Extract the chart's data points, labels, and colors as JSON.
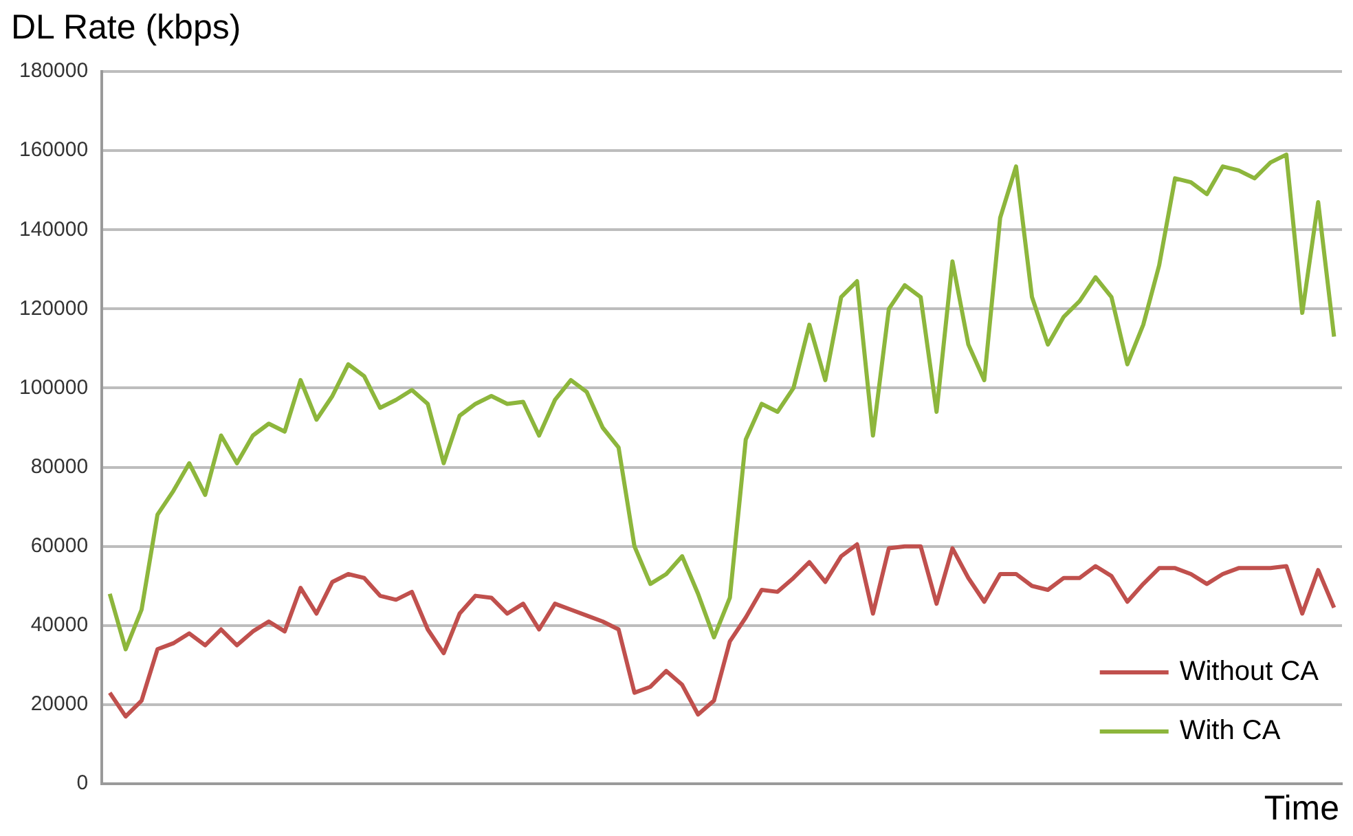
{
  "chart_data": {
    "type": "line",
    "ylabel": "DL Rate (kbps)",
    "xlabel": "Time",
    "categories": [
      null,
      null,
      null,
      null,
      null,
      null,
      null,
      null,
      null,
      null,
      null,
      null,
      null,
      null,
      null,
      null,
      null,
      null,
      null,
      null,
      null,
      null,
      null,
      null,
      null,
      null,
      null,
      null,
      null,
      null,
      null,
      null,
      null,
      null,
      null,
      null,
      null,
      null,
      null,
      null,
      null,
      null,
      null,
      null,
      null,
      null,
      null,
      null,
      null,
      null,
      null,
      null,
      null,
      null,
      null,
      null,
      null,
      null,
      null,
      null,
      null,
      null,
      null,
      null,
      null,
      null,
      null,
      null,
      null,
      null,
      null,
      null,
      null,
      null,
      null,
      null,
      null,
      null
    ],
    "series": [
      {
        "name": "Without CA",
        "color": "#c0504d",
        "values": [
          23000,
          17000,
          21000,
          34000,
          35500,
          38000,
          35000,
          39000,
          35000,
          38500,
          41000,
          38500,
          49500,
          43000,
          51000,
          53000,
          52000,
          47500,
          46500,
          48500,
          39000,
          33000,
          43000,
          47500,
          47000,
          43000,
          45500,
          39000,
          45500,
          44000,
          42500,
          41000,
          39000,
          23000,
          24500,
          28500,
          25000,
          17500,
          21000,
          36000,
          42000,
          49000,
          48500,
          52000,
          56000,
          51000,
          57500,
          60500,
          43000,
          59500,
          60000,
          60000,
          45500,
          59500,
          52000,
          46000,
          53000,
          53000,
          50000,
          49000,
          52000,
          52000,
          55000,
          52500,
          46000,
          50500,
          54500,
          54500,
          53000,
          50500,
          53000,
          54500,
          54500,
          54500,
          55000,
          43000,
          54000,
          44500
        ]
      },
      {
        "name": "With CA",
        "color": "#8db63c",
        "values": [
          48000,
          34000,
          44000,
          68000,
          74000,
          81000,
          73000,
          88000,
          81000,
          88000,
          91000,
          89000,
          102000,
          92000,
          98000,
          106000,
          103000,
          95000,
          97000,
          99500,
          96000,
          81000,
          93000,
          96000,
          98000,
          96000,
          96500,
          88000,
          97000,
          102000,
          99000,
          90000,
          85000,
          60000,
          50500,
          53000,
          57500,
          48000,
          37000,
          47000,
          87000,
          96000,
          94000,
          100000,
          116000,
          102000,
          123000,
          127000,
          88000,
          120000,
          126000,
          123000,
          94000,
          132000,
          111000,
          102000,
          143000,
          156000,
          123000,
          111000,
          118000,
          122000,
          128000,
          123000,
          106000,
          116000,
          131000,
          153000,
          152000,
          149000,
          156000,
          155000,
          153000,
          157000,
          159000,
          119000,
          147000,
          113000
        ]
      }
    ],
    "ylim": [
      0,
      180000
    ],
    "yticks": [
      0,
      20000,
      40000,
      60000,
      80000,
      100000,
      120000,
      140000,
      160000,
      180000
    ],
    "grid": "y",
    "legend": "bottom right",
    "marker": "none",
    "line_style": "solid",
    "tick_labels": "y"
  }
}
